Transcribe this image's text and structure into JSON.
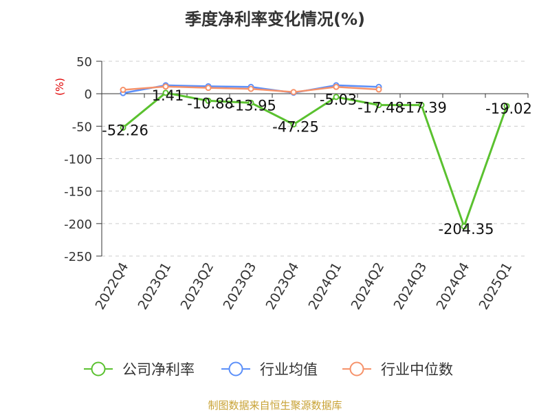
{
  "title": "季度净利率变化情况(%)",
  "source": "制图数据来自恒生聚源数据库",
  "chart_data": {
    "type": "line",
    "title": "季度净利率变化情况(%)",
    "ylabel": "(%)",
    "xlabel": "",
    "ylim": [
      -250,
      50
    ],
    "yticks": [
      50,
      0,
      -50,
      -100,
      -150,
      -200,
      -250
    ],
    "grid": true,
    "legend_position": "bottom",
    "categories": [
      "2022Q4",
      "2023Q1",
      "2023Q2",
      "2023Q3",
      "2023Q4",
      "2024Q1",
      "2024Q2",
      "2024Q3",
      "2024Q4",
      "2025Q1"
    ],
    "series": [
      {
        "name": "公司净利率",
        "color": "#5ac12f",
        "labels": true,
        "values": [
          -52.26,
          1.41,
          -10.88,
          -13.95,
          -47.25,
          -5.03,
          -17.48,
          -17.39,
          -204.35,
          -19.02
        ]
      },
      {
        "name": "行业均值",
        "color": "#5b8ff9",
        "labels": false,
        "values": [
          1,
          13,
          11.5,
          10.5,
          1.5,
          13,
          10.5,
          null,
          null,
          null
        ]
      },
      {
        "name": "行业中位数",
        "color": "#f6926a",
        "labels": false,
        "values": [
          6,
          11,
          9,
          7.5,
          2.5,
          10.5,
          6.5,
          null,
          null,
          null
        ]
      }
    ]
  },
  "colors": {
    "unit": "#e00000",
    "source": "#c8a235",
    "axis": "#333333",
    "grid": "#cccccc"
  }
}
